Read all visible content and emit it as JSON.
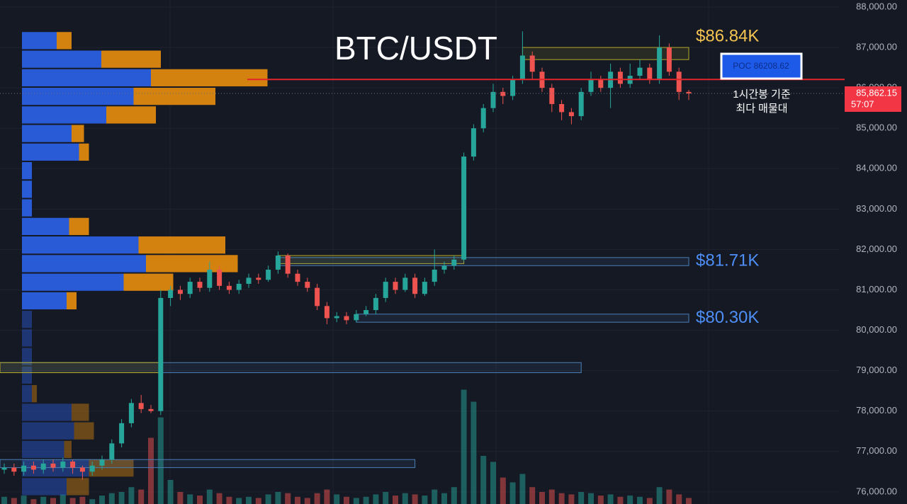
{
  "chart_data": {
    "type": "candlestick",
    "title": "BTC/USDT",
    "ylim": [
      75700,
      88175
    ],
    "yticks": [
      {
        "value": 76000,
        "label": "76,000.00"
      },
      {
        "value": 77000,
        "label": "77,000.00"
      },
      {
        "value": 78000,
        "label": "78,000.00"
      },
      {
        "value": 79000,
        "label": "79,000.00"
      },
      {
        "value": 80000,
        "label": "80,000.00"
      },
      {
        "value": 81000,
        "label": "81,000.00"
      },
      {
        "value": 82000,
        "label": "82,000.00"
      },
      {
        "value": 83000,
        "label": "83,000.00"
      },
      {
        "value": 84000,
        "label": "84,000.00"
      },
      {
        "value": 85000,
        "label": "85,000.00"
      },
      {
        "value": 86000,
        "label": "86,000.00"
      },
      {
        "value": 87000,
        "label": "87,000.00"
      },
      {
        "value": 88000,
        "label": "88,000.00"
      }
    ],
    "grid": true,
    "up_color": "#26a69a",
    "down_color": "#ef5350",
    "open": [
      76550,
      76600,
      76500,
      76650,
      76550,
      76700,
      76600,
      76750,
      76600,
      76500,
      76650,
      76800,
      77200,
      77700,
      78200,
      78050,
      78000,
      80800,
      81000,
      80900,
      81200,
      81050,
      81500,
      81100,
      81000,
      81150,
      81300,
      81250,
      81500,
      81850,
      81400,
      81200,
      81050,
      80600,
      80300,
      80350,
      80250,
      80400,
      80500,
      80800,
      81200,
      81000,
      81300,
      80900,
      81200,
      81500,
      81600,
      81750,
      84300,
      85000,
      85500,
      85900,
      85800,
      86200,
      86800,
      86400,
      86000,
      85600,
      85400,
      85300,
      85900,
      86200,
      86000,
      86400,
      86100,
      86300,
      86500,
      86200,
      87000,
      86400,
      85900
    ],
    "high": [
      76700,
      76700,
      76750,
      76750,
      76800,
      76800,
      76850,
      76800,
      76650,
      76750,
      76900,
      77300,
      77800,
      78300,
      78400,
      78150,
      81000,
      81100,
      81100,
      81300,
      81300,
      81700,
      81600,
      81200,
      81250,
      81400,
      81400,
      81600,
      81950,
      81900,
      81500,
      81300,
      81150,
      80700,
      80450,
      80450,
      80500,
      80600,
      80900,
      81300,
      81300,
      81400,
      81400,
      81300,
      82000,
      81700,
      81850,
      84400,
      85100,
      85600,
      86100,
      86000,
      86300,
      87400,
      86900,
      86500,
      86100,
      85700,
      85500,
      86000,
      86400,
      86300,
      86600,
      86500,
      86600,
      86700,
      86600,
      87300,
      87100,
      86500,
      85950
    ],
    "low": [
      76450,
      76400,
      76400,
      76450,
      76450,
      76500,
      76500,
      76450,
      76300,
      76400,
      76550,
      76700,
      77100,
      77600,
      77950,
      77950,
      77900,
      80600,
      80750,
      80800,
      80950,
      80950,
      81000,
      80900,
      80900,
      81050,
      81150,
      81200,
      81400,
      81300,
      81100,
      80950,
      80500,
      80150,
      80200,
      80150,
      80200,
      80350,
      80400,
      80700,
      80900,
      80950,
      80800,
      80850,
      81100,
      81400,
      81500,
      81700,
      84200,
      84900,
      85400,
      85600,
      85700,
      86100,
      86200,
      85900,
      85400,
      85200,
      85100,
      85200,
      85800,
      85900,
      85500,
      86000,
      86000,
      86200,
      86100,
      86100,
      86300,
      85700,
      85700
    ],
    "close": [
      76600,
      76500,
      76650,
      76550,
      76700,
      76600,
      76750,
      76600,
      76500,
      76650,
      76800,
      77200,
      77700,
      78200,
      78050,
      78000,
      80800,
      81000,
      80900,
      81200,
      81050,
      81500,
      81100,
      81000,
      81150,
      81300,
      81250,
      81500,
      81850,
      81400,
      81200,
      81050,
      80600,
      80300,
      80350,
      80250,
      80400,
      80500,
      80800,
      81200,
      81000,
      81300,
      80900,
      81200,
      81500,
      81600,
      81750,
      84300,
      85000,
      85500,
      85900,
      85800,
      86200,
      86800,
      86400,
      86000,
      85600,
      85400,
      85300,
      85900,
      86200,
      86000,
      86400,
      86100,
      86300,
      86500,
      86200,
      87000,
      86400,
      85900,
      85860
    ],
    "volume": [
      6,
      5,
      7,
      4,
      6,
      5,
      8,
      5,
      6,
      4,
      7,
      9,
      10,
      14,
      12,
      55,
      72,
      20,
      10,
      8,
      7,
      12,
      9,
      6,
      5,
      6,
      5,
      8,
      10,
      9,
      6,
      5,
      9,
      12,
      8,
      6,
      5,
      6,
      8,
      10,
      7,
      9,
      8,
      7,
      12,
      9,
      14,
      95,
      85,
      40,
      35,
      22,
      18,
      25,
      14,
      10,
      12,
      9,
      8,
      10,
      9,
      7,
      8,
      6,
      7,
      6,
      5,
      14,
      12,
      8,
      5
    ],
    "vlim": [
      0,
      100
    ],
    "profile": {
      "bins": [
        75900,
        76360,
        76820,
        77280,
        77740,
        78200,
        78660,
        79120,
        79580,
        80040,
        80500,
        80960,
        81420,
        81880,
        82340,
        82800,
        83260,
        83720,
        84180,
        84640,
        85100,
        85560,
        86020,
        86480,
        86940,
        87400
      ],
      "up": [
        18,
        27,
        17,
        21,
        20,
        4,
        4,
        4,
        4,
        4,
        18,
        41,
        50,
        47,
        19,
        4,
        4,
        4,
        23,
        20,
        34,
        45,
        52,
        32,
        14
      ],
      "down": [
        9,
        18,
        3,
        8,
        7,
        2,
        0,
        0,
        0,
        0,
        4,
        20,
        37,
        35,
        8,
        0,
        0,
        0,
        4,
        5,
        20,
        33,
        47,
        24,
        6
      ],
      "xlim": [
        0,
        100
      ],
      "up_color": "#2a5bd7",
      "down_color": "#d4820f",
      "value_area": [
        80500,
        87400
      ]
    },
    "zones": [
      {
        "low": 86700,
        "high": 87000,
        "from": 53,
        "to": 70,
        "color": "#b5a92a"
      },
      {
        "low": 81650,
        "high": 81850,
        "from": 28,
        "to": 47,
        "color": "#b5a92a"
      },
      {
        "low": 81600,
        "high": 81800,
        "from": 28,
        "to": 70,
        "color": "#4a7fb5"
      },
      {
        "low": 80200,
        "high": 80400,
        "from": 36,
        "to": 70,
        "color": "#4a7fb5"
      },
      {
        "low": 78950,
        "high": 79200,
        "from": 0,
        "to": 59,
        "color": "#4a7fb5"
      },
      {
        "low": 78950,
        "high": 79200,
        "from": 0,
        "to": 16,
        "color": "#b5a92a"
      },
      {
        "low": 76600,
        "high": 76800,
        "from": 0,
        "to": 42,
        "color": "#4a7fb5"
      }
    ],
    "price_labels": [
      {
        "value": 86840,
        "label": "$86.84K",
        "color": "#f5c451",
        "position": "above"
      },
      {
        "value": 81710,
        "label": "$81.71K",
        "color": "#4d8ef7",
        "position": "at"
      },
      {
        "value": 80300,
        "label": "$80.30K",
        "color": "#4d8ef7",
        "position": "at"
      }
    ],
    "poc": {
      "value": 86208.62,
      "label": "POC  86208.62",
      "color": "#e0262b"
    },
    "note": [
      "1시간봉 기준",
      "최다 매물대"
    ],
    "last_price": {
      "value": 85862.15,
      "label": "85,862.15",
      "timer": "57:07",
      "color": "#f23645"
    }
  }
}
